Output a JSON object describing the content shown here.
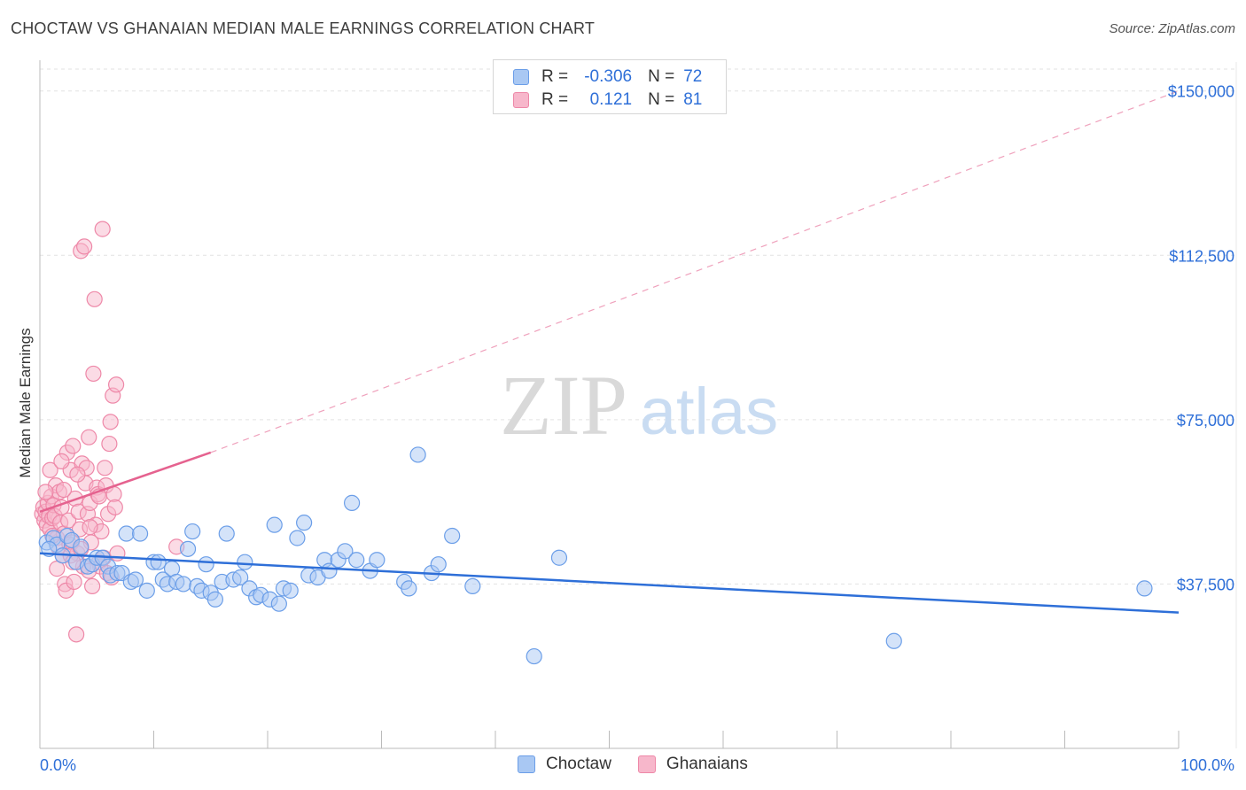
{
  "header": {
    "title": "CHOCTAW VS GHANAIAN MEDIAN MALE EARNINGS CORRELATION CHART",
    "source": "Source: ZipAtlas.com"
  },
  "watermark": {
    "zip": "ZIP",
    "atlas": "atlas"
  },
  "legend": {
    "rows": [
      {
        "r_label": "R =",
        "r_value": "-0.306",
        "n_label": "N =",
        "n_value": "72"
      },
      {
        "r_label": "R =",
        "r_value": "0.121",
        "n_label": "N =",
        "n_value": "81"
      }
    ]
  },
  "bottom_legend": {
    "choctaw": "Choctaw",
    "ghanaians": "Ghanaians"
  },
  "colors": {
    "choctaw_fill": "#a9c8f3",
    "choctaw_stroke": "#6b9ee8",
    "choctaw_line": "#2e6fd8",
    "ghana_fill": "#f7b7cb",
    "ghana_stroke": "#ee88a8",
    "ghana_line": "#e5628f",
    "axis_text": "#2e6fd8",
    "grid": "#e2e2e2"
  },
  "chart_data": {
    "type": "scatter",
    "title": "CHOCTAW VS GHANAIAN MEDIAN MALE EARNINGS CORRELATION CHART",
    "xlabel": "",
    "ylabel": "Median Male Earnings",
    "xlim": [
      0,
      100
    ],
    "ylim": [
      0,
      155000
    ],
    "x_tick_labels": [
      "0.0%",
      "100.0%"
    ],
    "y_ticks": [
      37500,
      75000,
      112500,
      150000
    ],
    "y_tick_labels": [
      "$37,500",
      "$75,000",
      "$112,500",
      "$150,000"
    ],
    "grid": true,
    "series": [
      {
        "name": "Choctaw",
        "R": -0.306,
        "N": 72,
        "trend": {
          "x": [
            0,
            100
          ],
          "y": [
            44500,
            31000
          ],
          "style": "solid"
        },
        "points": [
          [
            0.6,
            47000
          ],
          [
            1.2,
            48000
          ],
          [
            1.5,
            46500
          ],
          [
            2.0,
            44000
          ],
          [
            2.4,
            48500
          ],
          [
            2.8,
            47500
          ],
          [
            3.2,
            42500
          ],
          [
            3.6,
            46000
          ],
          [
            4.2,
            41500
          ],
          [
            4.6,
            42000
          ],
          [
            5.0,
            43500
          ],
          [
            5.5,
            43500
          ],
          [
            6.0,
            41500
          ],
          [
            6.2,
            39500
          ],
          [
            6.8,
            40000
          ],
          [
            7.2,
            40000
          ],
          [
            7.6,
            49000
          ],
          [
            8.0,
            38000
          ],
          [
            8.4,
            38500
          ],
          [
            8.8,
            49000
          ],
          [
            9.4,
            36000
          ],
          [
            10.0,
            42500
          ],
          [
            10.4,
            42500
          ],
          [
            10.8,
            38500
          ],
          [
            11.2,
            37500
          ],
          [
            11.6,
            41000
          ],
          [
            12.0,
            38000
          ],
          [
            12.6,
            37500
          ],
          [
            13.0,
            45500
          ],
          [
            13.4,
            49500
          ],
          [
            13.8,
            37000
          ],
          [
            14.2,
            36000
          ],
          [
            14.6,
            42000
          ],
          [
            15.0,
            35500
          ],
          [
            15.4,
            34000
          ],
          [
            16.0,
            38000
          ],
          [
            16.4,
            49000
          ],
          [
            17.0,
            38500
          ],
          [
            17.6,
            39000
          ],
          [
            18.0,
            42500
          ],
          [
            18.4,
            36500
          ],
          [
            19.0,
            34500
          ],
          [
            19.4,
            35000
          ],
          [
            20.2,
            34000
          ],
          [
            20.6,
            51000
          ],
          [
            21.0,
            33000
          ],
          [
            21.4,
            36500
          ],
          [
            22.0,
            36000
          ],
          [
            22.6,
            48000
          ],
          [
            23.2,
            51500
          ],
          [
            23.6,
            39500
          ],
          [
            24.4,
            39000
          ],
          [
            25.0,
            43000
          ],
          [
            25.4,
            40500
          ],
          [
            26.2,
            43000
          ],
          [
            26.8,
            45000
          ],
          [
            27.4,
            56000
          ],
          [
            27.8,
            43000
          ],
          [
            29.0,
            40500
          ],
          [
            29.6,
            43000
          ],
          [
            32.0,
            38000
          ],
          [
            32.4,
            36500
          ],
          [
            33.2,
            67000
          ],
          [
            34.4,
            40000
          ],
          [
            35.0,
            42000
          ],
          [
            36.2,
            48500
          ],
          [
            38.0,
            37000
          ],
          [
            43.4,
            21000
          ],
          [
            45.6,
            43500
          ],
          [
            75.0,
            24500
          ],
          [
            97.0,
            36500
          ],
          [
            0.8,
            45500
          ]
        ]
      },
      {
        "name": "Ghanaians",
        "R": 0.121,
        "N": 81,
        "trend": {
          "x": [
            0,
            15
          ],
          "y": [
            54000,
            67500
          ],
          "style": "solid",
          "extrapolated": {
            "x": [
              15,
              100
            ],
            "y": [
              67500,
              150000
            ],
            "style": "dashed"
          }
        },
        "points": [
          [
            0.2,
            53500
          ],
          [
            0.3,
            55000
          ],
          [
            0.4,
            52000
          ],
          [
            0.5,
            54000
          ],
          [
            0.6,
            51000
          ],
          [
            0.7,
            56000
          ],
          [
            0.8,
            53000
          ],
          [
            0.9,
            50000
          ],
          [
            1.0,
            57500
          ],
          [
            1.1,
            52500
          ],
          [
            1.2,
            55500
          ],
          [
            1.3,
            53000
          ],
          [
            1.4,
            60000
          ],
          [
            1.5,
            48000
          ],
          [
            1.6,
            46000
          ],
          [
            1.7,
            58500
          ],
          [
            1.8,
            51500
          ],
          [
            1.9,
            55000
          ],
          [
            2.0,
            44000
          ],
          [
            2.1,
            49000
          ],
          [
            2.2,
            37500
          ],
          [
            2.3,
            36000
          ],
          [
            2.4,
            67500
          ],
          [
            2.5,
            52000
          ],
          [
            2.6,
            46500
          ],
          [
            2.7,
            63500
          ],
          [
            2.8,
            47000
          ],
          [
            2.9,
            69000
          ],
          [
            3.0,
            38000
          ],
          [
            3.1,
            57000
          ],
          [
            3.2,
            26000
          ],
          [
            3.3,
            44500
          ],
          [
            3.4,
            54000
          ],
          [
            3.5,
            50000
          ],
          [
            3.6,
            113500
          ],
          [
            3.7,
            65000
          ],
          [
            3.8,
            41500
          ],
          [
            3.9,
            114500
          ],
          [
            4.0,
            60500
          ],
          [
            4.1,
            64000
          ],
          [
            4.2,
            53500
          ],
          [
            4.3,
            71000
          ],
          [
            4.4,
            56000
          ],
          [
            4.5,
            47000
          ],
          [
            4.6,
            37000
          ],
          [
            4.7,
            85500
          ],
          [
            4.8,
            102500
          ],
          [
            4.9,
            51000
          ],
          [
            5.0,
            59500
          ],
          [
            5.1,
            58000
          ],
          [
            5.2,
            42500
          ],
          [
            5.3,
            41500
          ],
          [
            5.4,
            49500
          ],
          [
            5.5,
            118500
          ],
          [
            5.6,
            43500
          ],
          [
            5.7,
            64000
          ],
          [
            5.8,
            60000
          ],
          [
            5.9,
            40000
          ],
          [
            6.0,
            53500
          ],
          [
            6.1,
            69500
          ],
          [
            6.2,
            74500
          ],
          [
            6.3,
            39000
          ],
          [
            6.4,
            80500
          ],
          [
            6.5,
            58000
          ],
          [
            6.6,
            55000
          ],
          [
            6.7,
            83000
          ],
          [
            0.9,
            63500
          ],
          [
            1.5,
            41000
          ],
          [
            2.1,
            59000
          ],
          [
            3.3,
            62500
          ],
          [
            4.4,
            50500
          ],
          [
            5.2,
            57500
          ],
          [
            6.8,
            44500
          ],
          [
            1.1,
            48500
          ],
          [
            1.9,
            65500
          ],
          [
            2.7,
            44000
          ],
          [
            3.6,
            45500
          ],
          [
            4.3,
            40500
          ],
          [
            12.0,
            46000
          ],
          [
            0.5,
            58500
          ],
          [
            2.9,
            42500
          ]
        ]
      }
    ]
  }
}
